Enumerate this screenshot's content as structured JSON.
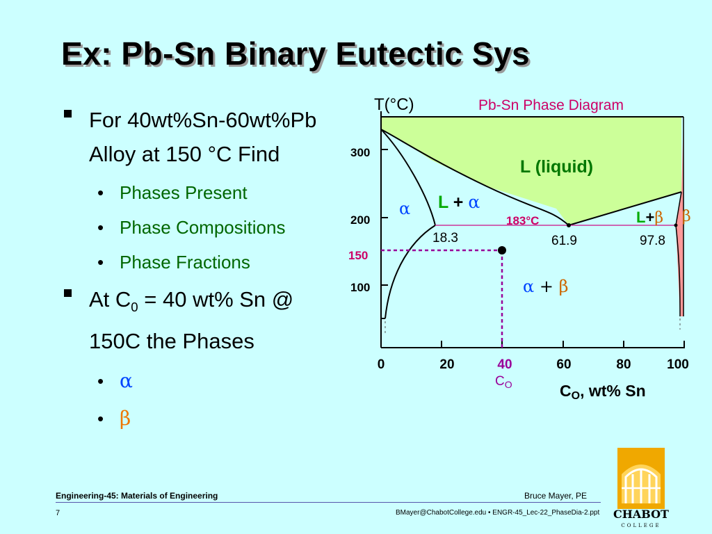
{
  "title": "Ex: Pb-Sn Binary Eutectic Sys",
  "bullets": [
    {
      "text": "For 40wt%Sn-60wt%Pb Alloy at 150 °C Find",
      "subitems": [
        "Phases Present",
        "Phase Compositions",
        "Phase Fractions"
      ]
    },
    {
      "text_prefix": "At C",
      "text_sub": "0",
      "text_suffix": " = 40 wt% Sn @ 150C the Phases",
      "subitems": [
        "α",
        "β"
      ]
    }
  ],
  "diagram": {
    "header": "Pb-Sn Phase Diagram",
    "y_axis_label": "T(°C)",
    "x_axis_label_main": "C",
    "x_axis_label_sub": "O",
    "x_axis_label_suffix": ", wt% Sn",
    "x_ticks": [
      "0",
      "20",
      "40",
      "60",
      "80",
      "100"
    ],
    "y_ticks": [
      "300",
      "200",
      "100"
    ],
    "x_marker_sub_main": "C",
    "x_marker_sub_sub": "O",
    "temp_marker": "150",
    "eutectic_label": "183°C",
    "composition_labels": [
      "18.3",
      "61.9",
      "97.8"
    ],
    "regions": {
      "liquid": "L (liquid)",
      "l_plus_alpha_L": "L",
      "l_plus_alpha_plus": " + ",
      "l_plus_alpha_greek": "α",
      "alpha": "α",
      "alpha_beta_a": "α",
      "alpha_beta_plus": " + ",
      "alpha_beta_b": "β",
      "l_plus_beta_L": "L",
      "l_plus_beta_plus": "+",
      "l_plus_beta_greek": "β",
      "beta": "β"
    },
    "colors": {
      "liquid_fill": "#ccff99",
      "beta_fill": "#ff9999",
      "marker": "#990099",
      "eutectic_line": "#cc3399",
      "l_green": "#00aa00",
      "alpha_blue": "#0044ff",
      "beta_orange": "#cc6600"
    }
  },
  "footer": {
    "course": "Engineering-45: Materials of Engineering",
    "author": "Bruce Mayer, PE",
    "page": "7",
    "file": "BMayer@ChabotCollege.edu  • ENGR-45_Lec-22_PhaseDia-2.ppt",
    "logo_text": "CHABOT",
    "logo_subtext": "COLLEGE"
  }
}
